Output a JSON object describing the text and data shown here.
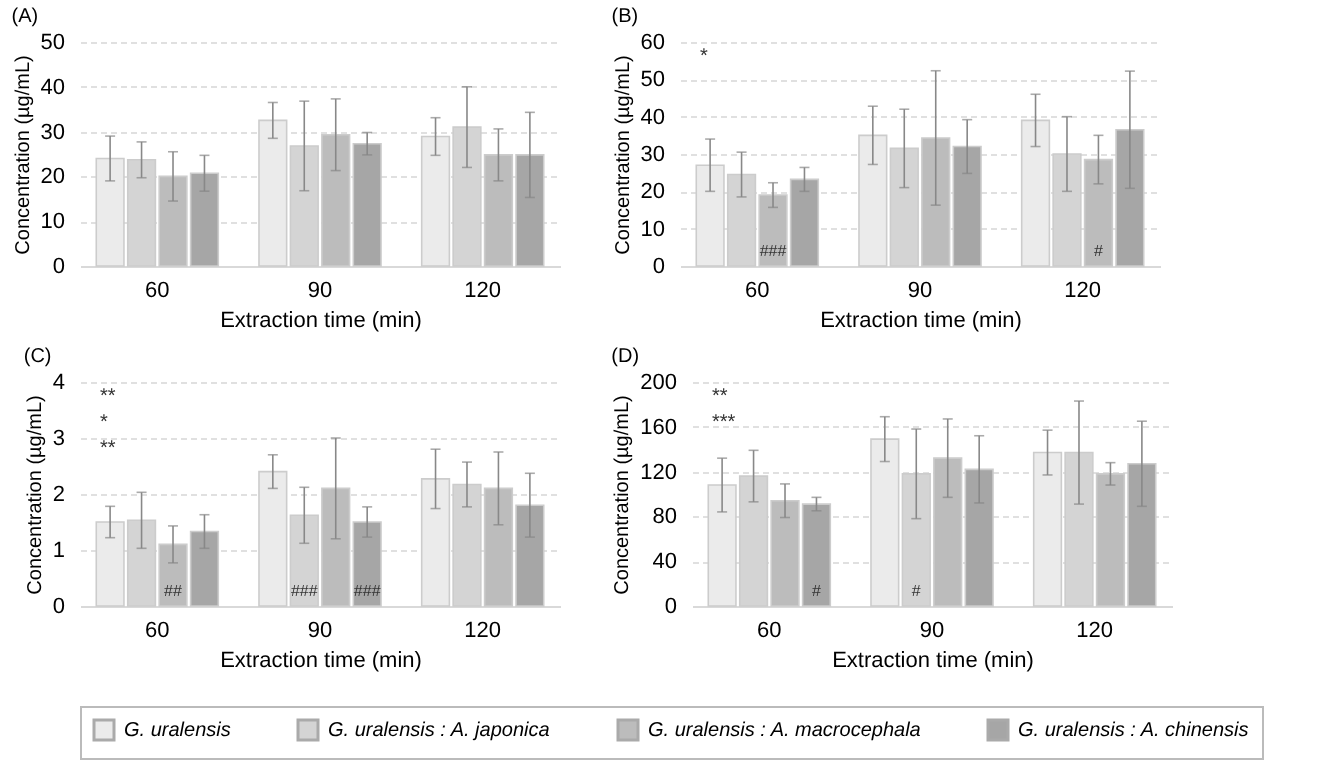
{
  "chart_data": [
    {
      "type": "bar",
      "title": "(A)",
      "xlabel": "Extraction time (min)",
      "ylabel": "Concentration (µg/mL)",
      "categories": [
        "60",
        "90",
        "120"
      ],
      "ylim": [
        0,
        50
      ],
      "yticks": [
        0,
        10,
        20,
        30,
        40,
        50
      ],
      "grid": "y",
      "legend": "bottom",
      "series": [
        {
          "name": "G. uralensis",
          "color": "#ebebeb",
          "values": [
            24,
            32.5,
            28.9
          ],
          "errors": [
            5,
            4,
            4.2
          ]
        },
        {
          "name": "G. uralensis : A. japonica",
          "color": "#d4d4d4",
          "values": [
            23.7,
            26.8,
            31
          ],
          "errors": [
            4,
            10,
            9
          ]
        },
        {
          "name": "G. uralensis : A. macrocephala",
          "color": "#bcbcbc",
          "values": [
            20,
            29.3,
            24.8
          ],
          "errors": [
            5.5,
            8,
            5.8
          ]
        },
        {
          "name": "G. uralensis : A. chinensis",
          "color": "#a6a6a6",
          "values": [
            20.7,
            27.3,
            24.8
          ],
          "errors": [
            4,
            2.5,
            9.5
          ]
        }
      ]
    },
    {
      "type": "bar",
      "title": "(B)",
      "xlabel": "Extraction time (min)",
      "ylabel": "Concentration (µg/mL)",
      "categories": [
        "60",
        "90",
        "120"
      ],
      "ylim": [
        0,
        60
      ],
      "yticks": [
        0,
        10,
        20,
        30,
        40,
        50,
        60
      ],
      "grid": "y",
      "legend": "bottom",
      "annotations": [
        "*"
      ],
      "series": [
        {
          "name": "G. uralensis",
          "color": "#ebebeb",
          "values": [
            27,
            35,
            39
          ],
          "errors": [
            7,
            7.8,
            7
          ]
        },
        {
          "name": "G. uralensis : A. japonica",
          "color": "#d4d4d4",
          "values": [
            24.5,
            31.5,
            30
          ],
          "errors": [
            6,
            10.5,
            10
          ]
        },
        {
          "name": "G. uralensis : A. macrocephala",
          "color": "#bcbcbc",
          "values": [
            19,
            34.3,
            28.5
          ],
          "errors": [
            3.3,
            18,
            6.5
          ],
          "value_labels": [
            "###",
            null,
            "#"
          ]
        },
        {
          "name": "G. uralensis : A. chinensis",
          "color": "#a6a6a6",
          "values": [
            23.2,
            32,
            36.5
          ],
          "errors": [
            3.2,
            7.2,
            15.7
          ]
        }
      ]
    },
    {
      "type": "bar",
      "title": "(C)",
      "xlabel": "Extraction time (min)",
      "ylabel": "Concentration (µg/mL)",
      "categories": [
        "60",
        "90",
        "120"
      ],
      "ylim": [
        0,
        4
      ],
      "yticks": [
        0,
        1,
        2,
        3,
        4
      ],
      "grid": "y",
      "legend": "bottom",
      "annotations": [
        "**",
        "*",
        "**"
      ],
      "series": [
        {
          "name": "G. uralensis",
          "color": "#ebebeb",
          "values": [
            1.5,
            2.4,
            2.27
          ],
          "errors": [
            0.28,
            0.3,
            0.53
          ]
        },
        {
          "name": "G. uralensis : A. japonica",
          "color": "#d4d4d4",
          "values": [
            1.53,
            1.62,
            2.17
          ],
          "errors": [
            0.5,
            0.5,
            0.4
          ],
          "value_labels": [
            null,
            "###",
            null
          ]
        },
        {
          "name": "G. uralensis : A. macrocephala",
          "color": "#bcbcbc",
          "values": [
            1.1,
            2.1,
            2.1
          ],
          "errors": [
            0.33,
            0.9,
            0.65
          ],
          "value_labels": [
            "##",
            null,
            null
          ]
        },
        {
          "name": "G. uralensis : A. chinensis",
          "color": "#a6a6a6",
          "values": [
            1.33,
            1.5,
            1.8
          ],
          "errors": [
            0.3,
            0.27,
            0.57
          ],
          "value_labels": [
            null,
            "###",
            null
          ]
        }
      ]
    },
    {
      "type": "bar",
      "title": "(D)",
      "xlabel": "Extraction time (min)",
      "ylabel": "Concentration (µg/mL)",
      "categories": [
        "60",
        "90",
        "120"
      ],
      "ylim": [
        0,
        200
      ],
      "yticks": [
        0,
        40,
        80,
        120,
        160,
        200
      ],
      "grid": "y",
      "legend": "bottom",
      "annotations": [
        "**",
        "***"
      ],
      "series": [
        {
          "name": "G. uralensis",
          "color": "#ebebeb",
          "values": [
            108,
            149,
            137
          ],
          "errors": [
            24,
            20,
            20
          ]
        },
        {
          "name": "G. uralensis : A. japonica",
          "color": "#d4d4d4",
          "values": [
            116,
            118,
            137
          ],
          "errors": [
            23,
            40,
            46
          ],
          "value_labels": [
            null,
            "#",
            null
          ]
        },
        {
          "name": "G. uralensis : A. macrocephala",
          "color": "#bcbcbc",
          "values": [
            94,
            132,
            118
          ],
          "errors": [
            15,
            35,
            10
          ]
        },
        {
          "name": "G. uralensis : A. chinensis",
          "color": "#a6a6a6",
          "values": [
            91,
            122,
            127
          ],
          "errors": [
            6,
            30,
            38
          ],
          "value_labels": [
            "#",
            null,
            null
          ]
        }
      ]
    }
  ]
}
